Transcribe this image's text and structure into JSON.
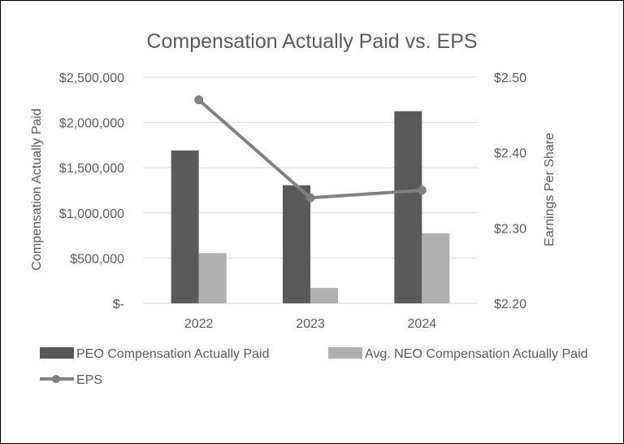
{
  "chart_data": {
    "type": "bar",
    "title": "Compensation Actually Paid vs. EPS",
    "categories": [
      "2022",
      "2023",
      "2024"
    ],
    "series": [
      {
        "name": "PEO Compensation Actually Paid",
        "type": "bar",
        "axis": "left",
        "color": "#595959",
        "values": [
          1690000,
          1305000,
          2125000
        ]
      },
      {
        "name": "Avg. NEO Compensation Actually Paid",
        "type": "bar",
        "axis": "left",
        "color": "#b0b0b0",
        "values": [
          555000,
          170000,
          775000
        ]
      },
      {
        "name": "EPS",
        "type": "line",
        "axis": "right",
        "color": "#808080",
        "values": [
          2.47,
          2.34,
          2.35
        ]
      }
    ],
    "y_left": {
      "label": "Compensation Actually Paid",
      "ylim": [
        0,
        2500000
      ],
      "ticks": [
        0,
        500000,
        1000000,
        1500000,
        2000000,
        2500000
      ],
      "tick_labels": [
        "$-",
        "$500,000",
        "$1,000,000",
        "$1,500,000",
        "$2,000,000",
        "$2,500,000"
      ]
    },
    "y_right": {
      "label": "Earnings Per Share",
      "ylim": [
        2.2,
        2.5
      ],
      "ticks": [
        2.2,
        2.3,
        2.4,
        2.5
      ],
      "tick_labels": [
        "$2.20",
        "$2.30",
        "$2.40",
        "$2.50"
      ]
    },
    "grid": true,
    "legend": "bottom"
  }
}
